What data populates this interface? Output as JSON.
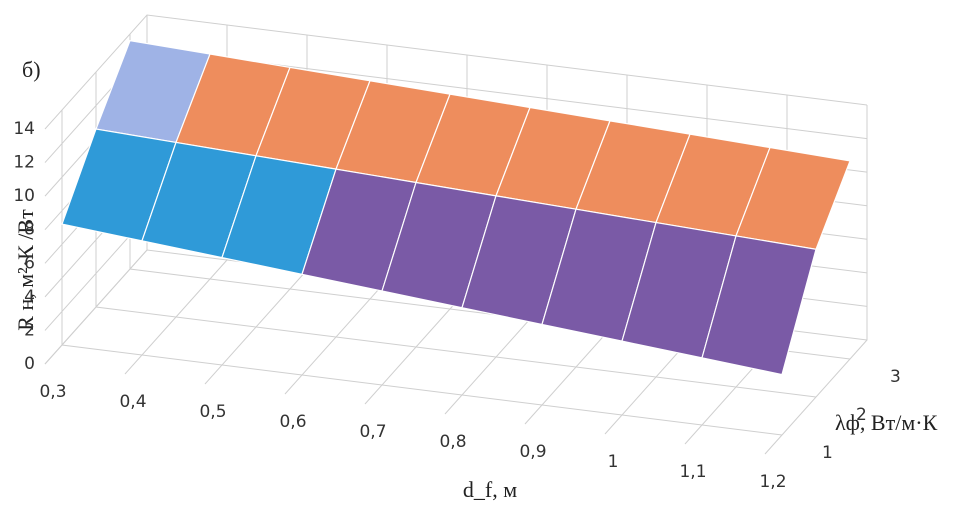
{
  "chart_data": {
    "type": "surface",
    "panel_label": "б)",
    "y_axis_label": "R н, м²·К /Вт",
    "x_axis_label": "d_f, м",
    "depth_axis_label": "λф, Вт/м·К",
    "categories": [
      "0,3",
      "0,4",
      "0,5",
      "0,6",
      "0,7",
      "0,8",
      "0,9",
      "1",
      "1,1",
      "1,2"
    ],
    "series": [
      {
        "name": "1",
        "values": [
          7.2,
          6.8,
          6.4,
          6.0,
          5.6,
          5.2,
          4.8,
          4.4,
          4.0,
          3.6
        ]
      },
      {
        "name": "2",
        "values": [
          10.6,
          10.4,
          10.2,
          10.0,
          9.8,
          9.6,
          9.4,
          9.2,
          9.0,
          8.8
        ]
      },
      {
        "name": "3",
        "values": [
          13.6,
          13.4,
          13.2,
          13.0,
          12.8,
          12.6,
          12.4,
          12.2,
          12.0,
          11.8
        ]
      }
    ],
    "ylim": [
      0,
      14
    ],
    "yticks": [
      0,
      2,
      4,
      6,
      8,
      10,
      12,
      14
    ],
    "band_colors": [
      "#6b8fd0",
      "#a3c65e",
      "#7a5aa6",
      "#7a5aa6",
      "#2f9ad8",
      "#ee8d5d",
      "#9fb3e6"
    ],
    "grid": true
  }
}
